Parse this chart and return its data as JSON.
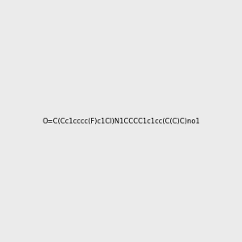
{
  "smiles": "O=C(Cc1cccc(F)c1Cl)N1CCCC1c1cc(C(C)C)no1",
  "img_size": [
    300,
    300
  ],
  "background": "#ebebeb",
  "atom_colors": {
    "N": "#0000ff",
    "O": "#ff0000",
    "F": "#ff00ff",
    "Cl": "#00aa00"
  },
  "title": ""
}
